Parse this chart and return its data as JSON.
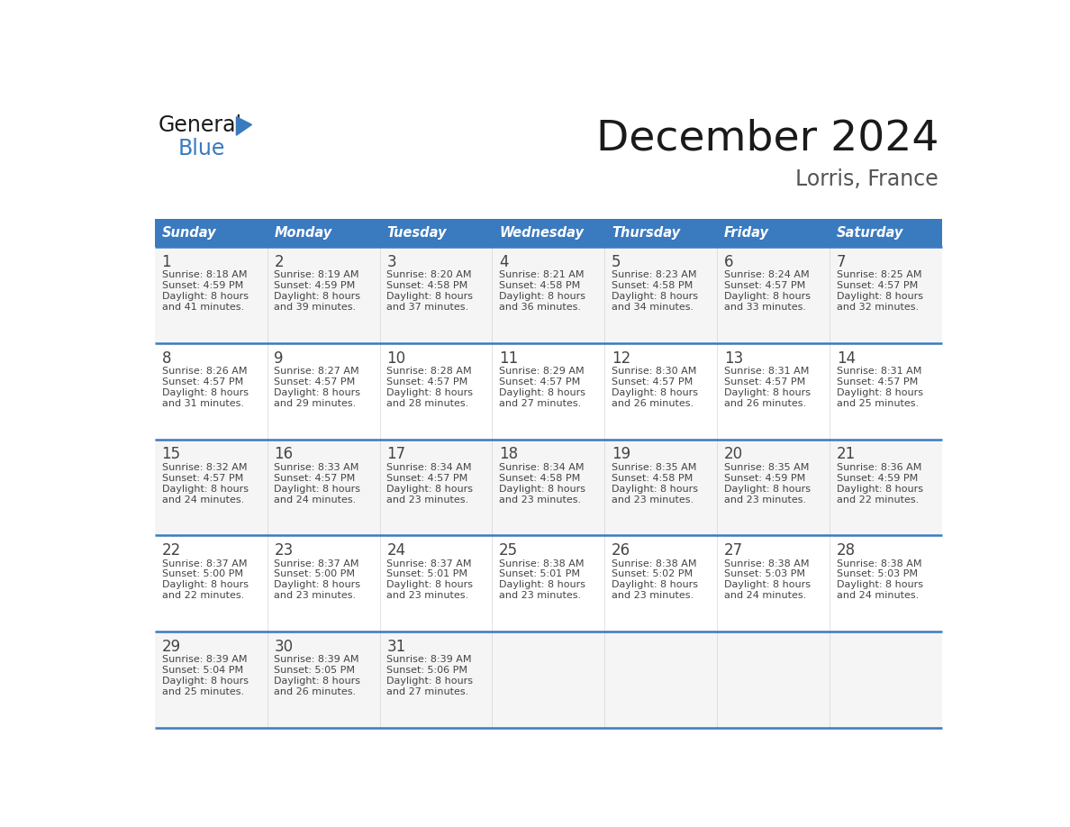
{
  "title": "December 2024",
  "subtitle": "Lorris, France",
  "header_color": "#3a7abf",
  "header_text_color": "#ffffff",
  "cell_bg_colors": [
    "#f5f5f5",
    "#ffffff",
    "#f5f5f5",
    "#ffffff",
    "#f5f5f5"
  ],
  "day_names": [
    "Sunday",
    "Monday",
    "Tuesday",
    "Wednesday",
    "Thursday",
    "Friday",
    "Saturday"
  ],
  "days": [
    {
      "day": 1,
      "col": 0,
      "row": 0,
      "sunrise": "8:18 AM",
      "sunset": "4:59 PM",
      "daylight": "8 hours and 41 minutes."
    },
    {
      "day": 2,
      "col": 1,
      "row": 0,
      "sunrise": "8:19 AM",
      "sunset": "4:59 PM",
      "daylight": "8 hours and 39 minutes."
    },
    {
      "day": 3,
      "col": 2,
      "row": 0,
      "sunrise": "8:20 AM",
      "sunset": "4:58 PM",
      "daylight": "8 hours and 37 minutes."
    },
    {
      "day": 4,
      "col": 3,
      "row": 0,
      "sunrise": "8:21 AM",
      "sunset": "4:58 PM",
      "daylight": "8 hours and 36 minutes."
    },
    {
      "day": 5,
      "col": 4,
      "row": 0,
      "sunrise": "8:23 AM",
      "sunset": "4:58 PM",
      "daylight": "8 hours and 34 minutes."
    },
    {
      "day": 6,
      "col": 5,
      "row": 0,
      "sunrise": "8:24 AM",
      "sunset": "4:57 PM",
      "daylight": "8 hours and 33 minutes."
    },
    {
      "day": 7,
      "col": 6,
      "row": 0,
      "sunrise": "8:25 AM",
      "sunset": "4:57 PM",
      "daylight": "8 hours and 32 minutes."
    },
    {
      "day": 8,
      "col": 0,
      "row": 1,
      "sunrise": "8:26 AM",
      "sunset": "4:57 PM",
      "daylight": "8 hours and 31 minutes."
    },
    {
      "day": 9,
      "col": 1,
      "row": 1,
      "sunrise": "8:27 AM",
      "sunset": "4:57 PM",
      "daylight": "8 hours and 29 minutes."
    },
    {
      "day": 10,
      "col": 2,
      "row": 1,
      "sunrise": "8:28 AM",
      "sunset": "4:57 PM",
      "daylight": "8 hours and 28 minutes."
    },
    {
      "day": 11,
      "col": 3,
      "row": 1,
      "sunrise": "8:29 AM",
      "sunset": "4:57 PM",
      "daylight": "8 hours and 27 minutes."
    },
    {
      "day": 12,
      "col": 4,
      "row": 1,
      "sunrise": "8:30 AM",
      "sunset": "4:57 PM",
      "daylight": "8 hours and 26 minutes."
    },
    {
      "day": 13,
      "col": 5,
      "row": 1,
      "sunrise": "8:31 AM",
      "sunset": "4:57 PM",
      "daylight": "8 hours and 26 minutes."
    },
    {
      "day": 14,
      "col": 6,
      "row": 1,
      "sunrise": "8:31 AM",
      "sunset": "4:57 PM",
      "daylight": "8 hours and 25 minutes."
    },
    {
      "day": 15,
      "col": 0,
      "row": 2,
      "sunrise": "8:32 AM",
      "sunset": "4:57 PM",
      "daylight": "8 hours and 24 minutes."
    },
    {
      "day": 16,
      "col": 1,
      "row": 2,
      "sunrise": "8:33 AM",
      "sunset": "4:57 PM",
      "daylight": "8 hours and 24 minutes."
    },
    {
      "day": 17,
      "col": 2,
      "row": 2,
      "sunrise": "8:34 AM",
      "sunset": "4:57 PM",
      "daylight": "8 hours and 23 minutes."
    },
    {
      "day": 18,
      "col": 3,
      "row": 2,
      "sunrise": "8:34 AM",
      "sunset": "4:58 PM",
      "daylight": "8 hours and 23 minutes."
    },
    {
      "day": 19,
      "col": 4,
      "row": 2,
      "sunrise": "8:35 AM",
      "sunset": "4:58 PM",
      "daylight": "8 hours and 23 minutes."
    },
    {
      "day": 20,
      "col": 5,
      "row": 2,
      "sunrise": "8:35 AM",
      "sunset": "4:59 PM",
      "daylight": "8 hours and 23 minutes."
    },
    {
      "day": 21,
      "col": 6,
      "row": 2,
      "sunrise": "8:36 AM",
      "sunset": "4:59 PM",
      "daylight": "8 hours and 22 minutes."
    },
    {
      "day": 22,
      "col": 0,
      "row": 3,
      "sunrise": "8:37 AM",
      "sunset": "5:00 PM",
      "daylight": "8 hours and 22 minutes."
    },
    {
      "day": 23,
      "col": 1,
      "row": 3,
      "sunrise": "8:37 AM",
      "sunset": "5:00 PM",
      "daylight": "8 hours and 23 minutes."
    },
    {
      "day": 24,
      "col": 2,
      "row": 3,
      "sunrise": "8:37 AM",
      "sunset": "5:01 PM",
      "daylight": "8 hours and 23 minutes."
    },
    {
      "day": 25,
      "col": 3,
      "row": 3,
      "sunrise": "8:38 AM",
      "sunset": "5:01 PM",
      "daylight": "8 hours and 23 minutes."
    },
    {
      "day": 26,
      "col": 4,
      "row": 3,
      "sunrise": "8:38 AM",
      "sunset": "5:02 PM",
      "daylight": "8 hours and 23 minutes."
    },
    {
      "day": 27,
      "col": 5,
      "row": 3,
      "sunrise": "8:38 AM",
      "sunset": "5:03 PM",
      "daylight": "8 hours and 24 minutes."
    },
    {
      "day": 28,
      "col": 6,
      "row": 3,
      "sunrise": "8:38 AM",
      "sunset": "5:03 PM",
      "daylight": "8 hours and 24 minutes."
    },
    {
      "day": 29,
      "col": 0,
      "row": 4,
      "sunrise": "8:39 AM",
      "sunset": "5:04 PM",
      "daylight": "8 hours and 25 minutes."
    },
    {
      "day": 30,
      "col": 1,
      "row": 4,
      "sunrise": "8:39 AM",
      "sunset": "5:05 PM",
      "daylight": "8 hours and 26 minutes."
    },
    {
      "day": 31,
      "col": 2,
      "row": 4,
      "sunrise": "8:39 AM",
      "sunset": "5:06 PM",
      "daylight": "8 hours and 27 minutes."
    }
  ],
  "num_rows": 5,
  "divider_color": "#3a7abf",
  "text_color": "#444444",
  "day_num_color": "#444444",
  "title_color": "#1a1a1a",
  "subtitle_color": "#555555"
}
